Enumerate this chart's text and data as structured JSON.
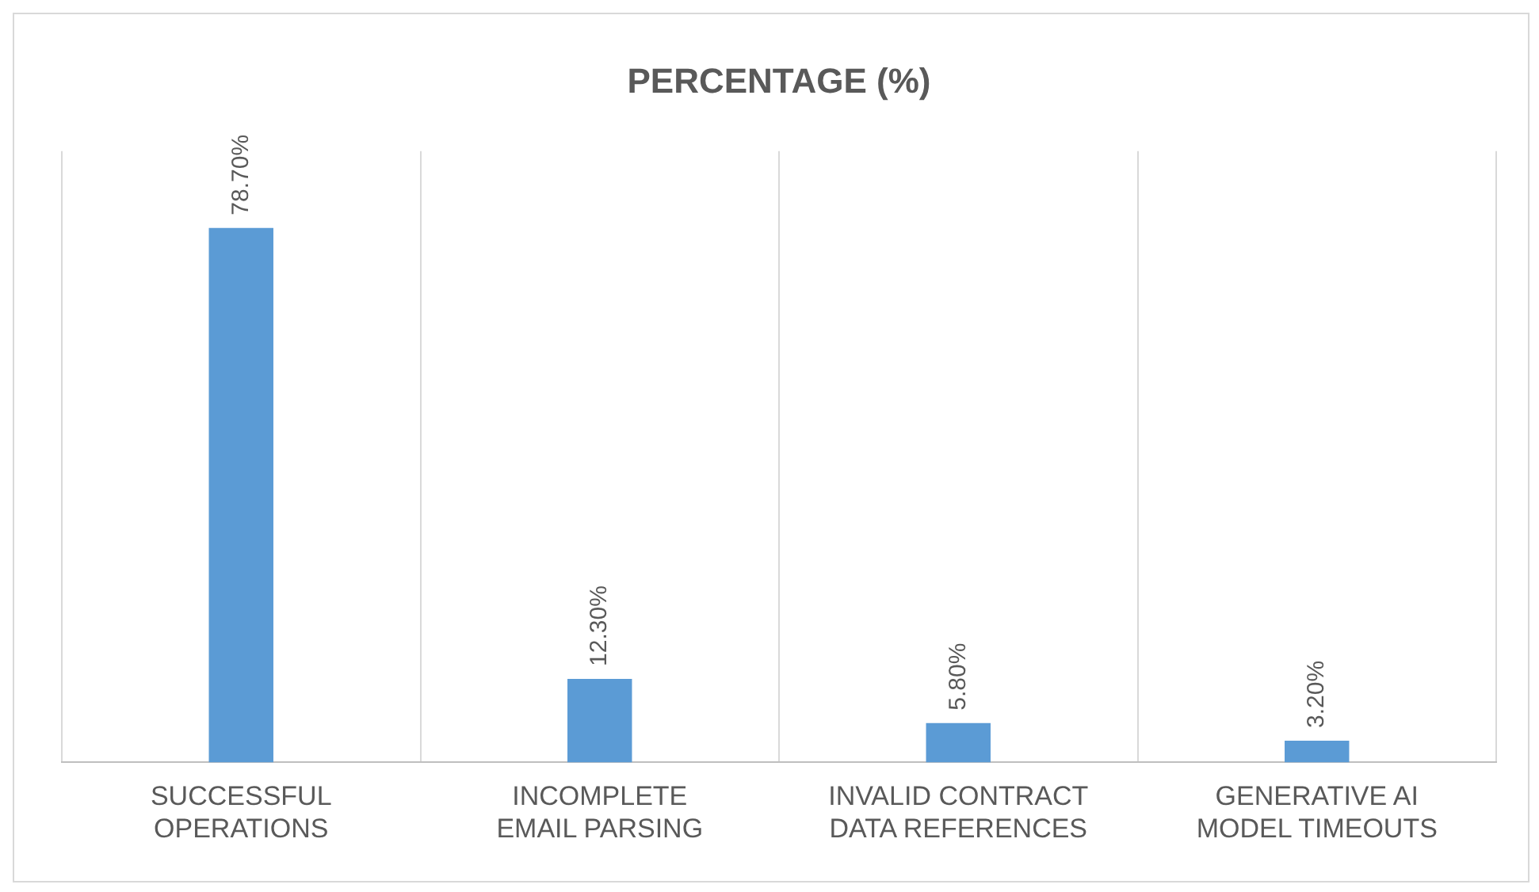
{
  "chart_data": {
    "type": "bar",
    "title": "PERCENTAGE (%)",
    "categories": [
      "SUCCESSFUL OPERATIONS",
      "INCOMPLETE EMAIL PARSING",
      "INVALID CONTRACT DATA REFERENCES",
      "GENERATIVE AI MODEL TIMEOUTS"
    ],
    "values": [
      78.7,
      12.3,
      5.8,
      3.2
    ],
    "value_labels": [
      "78.70%",
      "12.30%",
      "5.80%",
      "3.20%"
    ],
    "color": "#5b9bd5",
    "grid": "x",
    "legend": false
  }
}
